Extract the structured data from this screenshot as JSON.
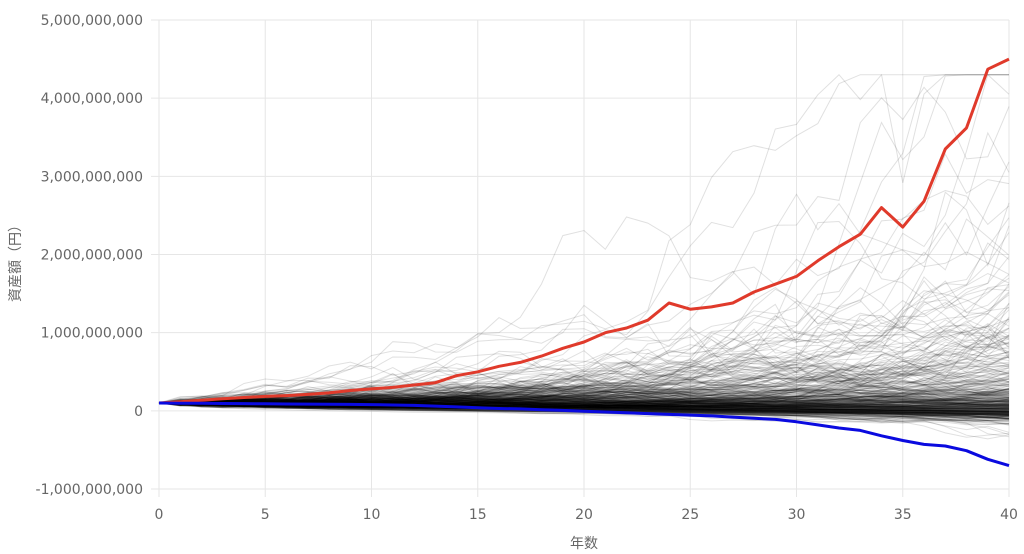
{
  "chart_data": {
    "type": "line",
    "xlabel": "年数",
    "ylabel": "資産額（円）",
    "xlim": [
      0,
      40
    ],
    "ylim": [
      -1000000000,
      5000000000
    ],
    "x_ticks": [
      "0",
      "5",
      "10",
      "15",
      "20",
      "25",
      "30",
      "35",
      "40"
    ],
    "y_ticks": [
      "5,000,000,000",
      "4,000,000,000",
      "3,000,000,000",
      "2,000,000,000",
      "1,000,000,000",
      "0",
      "-1,000,000,000"
    ],
    "x_tick_values": [
      0,
      5,
      10,
      15,
      20,
      25,
      30,
      35,
      40
    ],
    "y_tick_values": [
      5000000000,
      4000000000,
      3000000000,
      2000000000,
      1000000000,
      0,
      -1000000000
    ],
    "grid": true,
    "legend": "none",
    "colors": {
      "best": "#e03a2b",
      "worst": "#0a0adf",
      "simulations": "#000000",
      "grid": "#e6e6e6",
      "text": "#666666"
    },
    "series": [
      {
        "x": [
          0,
          1,
          2,
          3,
          4,
          5,
          6,
          7,
          8,
          9,
          10,
          11,
          12,
          13,
          14,
          15,
          16,
          17,
          18,
          19,
          20,
          21,
          22,
          23,
          24,
          25,
          26,
          27,
          28,
          29,
          30,
          31,
          32,
          33,
          34,
          35,
          36,
          37,
          38,
          39,
          40
        ],
        "values": [
          100000000,
          115000000,
          135000000,
          155000000,
          170000000,
          185000000,
          195000000,
          210000000,
          230000000,
          260000000,
          280000000,
          300000000,
          330000000,
          360000000,
          450000000,
          500000000,
          570000000,
          620000000,
          700000000,
          800000000,
          880000000,
          1000000000,
          1060000000,
          1160000000,
          1380000000,
          1300000000,
          1330000000,
          1380000000,
          1520000000,
          1620000000,
          1720000000,
          1920000000,
          2100000000,
          2260000000,
          2600000000,
          2350000000,
          2680000000,
          3350000000,
          3620000000,
          4370000000,
          4500000000
        ]
      },
      {
        "x": [
          0,
          1,
          2,
          3,
          4,
          5,
          6,
          7,
          8,
          9,
          10,
          11,
          12,
          13,
          14,
          15,
          16,
          17,
          18,
          19,
          20,
          21,
          22,
          23,
          24,
          25,
          26,
          27,
          28,
          29,
          30,
          31,
          32,
          33,
          34,
          35,
          36,
          37,
          38,
          39,
          40
        ],
        "values": [
          100000000,
          98000000,
          96000000,
          94000000,
          92000000,
          90000000,
          88000000,
          86000000,
          84000000,
          82000000,
          80000000,
          75000000,
          70000000,
          60000000,
          50000000,
          40000000,
          30000000,
          25000000,
          15000000,
          5000000,
          -5000000,
          -15000000,
          -25000000,
          -35000000,
          -45000000,
          -55000000,
          -65000000,
          -80000000,
          -95000000,
          -110000000,
          -140000000,
          -180000000,
          -220000000,
          -250000000,
          -320000000,
          -380000000,
          -430000000,
          -450000000,
          -510000000,
          -620000000,
          -700000000
        ]
      }
    ]
  }
}
